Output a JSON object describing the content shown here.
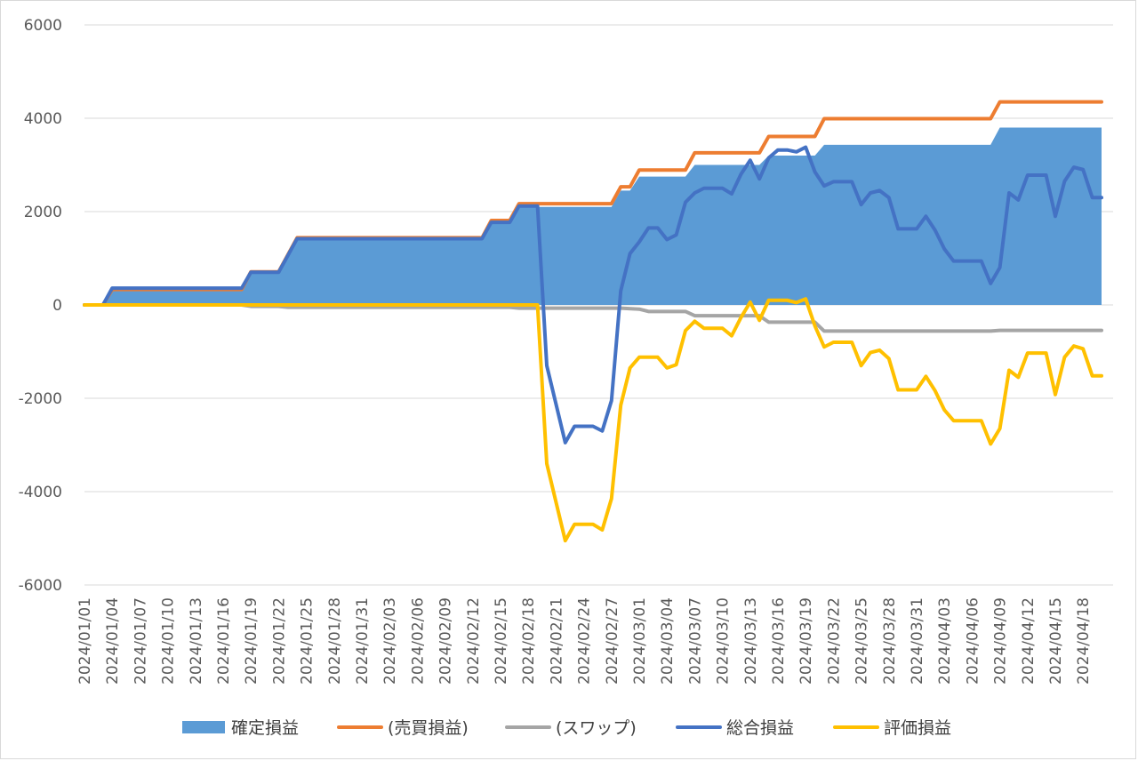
{
  "chart_data": {
    "type": "line",
    "title": "",
    "xlabel": "",
    "ylabel": "",
    "ylim": [
      -6000,
      6000
    ],
    "yticks": [
      6000,
      4000,
      2000,
      0,
      -2000,
      -4000,
      -6000
    ],
    "ytick_labels": [
      "6000",
      "4000",
      "2000",
      "0",
      "-2000",
      "-4000",
      "-6000"
    ],
    "grid": "horizontal",
    "legend_position": "bottom",
    "x_tick_labels": [
      "2024/01/01",
      "2024/01/04",
      "2024/01/07",
      "2024/01/10",
      "2024/01/13",
      "2024/01/16",
      "2024/01/19",
      "2024/01/22",
      "2024/01/25",
      "2024/01/28",
      "2024/01/31",
      "2024/02/03",
      "2024/02/06",
      "2024/02/09",
      "2024/02/12",
      "2024/02/15",
      "2024/02/18",
      "2024/02/21",
      "2024/02/24",
      "2024/02/27",
      "2024/03/01",
      "2024/03/04",
      "2024/03/07",
      "2024/03/10",
      "2024/03/13",
      "2024/03/16",
      "2024/03/19",
      "2024/03/22",
      "2024/03/25",
      "2024/03/28",
      "2024/03/31",
      "2024/04/03",
      "2024/04/06",
      "2024/04/09",
      "2024/04/12",
      "2024/04/15",
      "2024/04/18"
    ],
    "x_start": "2024/01/01",
    "x_end": "2024/04/20",
    "series": [
      {
        "name": "確定損益",
        "kind": "area",
        "color": "#5b9bd5",
        "points": [
          [
            "2024/01/01",
            0
          ],
          [
            "2024/01/03",
            0
          ],
          [
            "2024/01/04",
            300
          ],
          [
            "2024/01/18",
            300
          ],
          [
            "2024/01/19",
            680
          ],
          [
            "2024/01/22",
            680
          ],
          [
            "2024/01/24",
            1400
          ],
          [
            "2024/02/13",
            1400
          ],
          [
            "2024/02/14",
            1750
          ],
          [
            "2024/02/16",
            1750
          ],
          [
            "2024/02/17",
            2100
          ],
          [
            "2024/02/27",
            2100
          ],
          [
            "2024/02/28",
            2450
          ],
          [
            "2024/02/29",
            2450
          ],
          [
            "2024/03/01",
            2750
          ],
          [
            "2024/03/06",
            2750
          ],
          [
            "2024/03/07",
            3000
          ],
          [
            "2024/03/14",
            3000
          ],
          [
            "2024/03/15",
            3200
          ],
          [
            "2024/03/20",
            3200
          ],
          [
            "2024/03/21",
            3430
          ],
          [
            "2024/04/08",
            3430
          ],
          [
            "2024/04/09",
            3800
          ],
          [
            "2024/04/20",
            3800
          ]
        ]
      },
      {
        "name": "(売買損益)",
        "kind": "line",
        "color": "#ed7d31",
        "points": [
          [
            "2024/01/01",
            0
          ],
          [
            "2024/01/03",
            0
          ],
          [
            "2024/01/04",
            330
          ],
          [
            "2024/01/18",
            330
          ],
          [
            "2024/01/19",
            710
          ],
          [
            "2024/01/22",
            710
          ],
          [
            "2024/01/24",
            1440
          ],
          [
            "2024/02/13",
            1440
          ],
          [
            "2024/02/14",
            1810
          ],
          [
            "2024/02/16",
            1810
          ],
          [
            "2024/02/17",
            2170
          ],
          [
            "2024/02/27",
            2170
          ],
          [
            "2024/02/28",
            2530
          ],
          [
            "2024/02/29",
            2530
          ],
          [
            "2024/03/01",
            2890
          ],
          [
            "2024/03/06",
            2890
          ],
          [
            "2024/03/07",
            3260
          ],
          [
            "2024/03/14",
            3260
          ],
          [
            "2024/03/15",
            3610
          ],
          [
            "2024/03/20",
            3610
          ],
          [
            "2024/03/21",
            3990
          ],
          [
            "2024/04/08",
            3990
          ],
          [
            "2024/04/09",
            4350
          ],
          [
            "2024/04/20",
            4350
          ]
        ]
      },
      {
        "name": "(スワップ)",
        "kind": "line",
        "color": "#a5a5a5",
        "points": [
          [
            "2024/01/01",
            0
          ],
          [
            "2024/01/18",
            0
          ],
          [
            "2024/01/19",
            -30
          ],
          [
            "2024/01/22",
            -30
          ],
          [
            "2024/01/23",
            -50
          ],
          [
            "2024/02/16",
            -50
          ],
          [
            "2024/02/17",
            -70
          ],
          [
            "2024/02/28",
            -70
          ],
          [
            "2024/03/01",
            -90
          ],
          [
            "2024/03/02",
            -140
          ],
          [
            "2024/03/06",
            -140
          ],
          [
            "2024/03/07",
            -230
          ],
          [
            "2024/03/14",
            -230
          ],
          [
            "2024/03/15",
            -370
          ],
          [
            "2024/03/20",
            -370
          ],
          [
            "2024/03/21",
            -560
          ],
          [
            "2024/04/08",
            -560
          ],
          [
            "2024/04/09",
            -545
          ],
          [
            "2024/04/20",
            -545
          ]
        ]
      },
      {
        "name": "総合損益",
        "kind": "line",
        "color": "#4472c4",
        "points": [
          [
            "2024/01/01",
            0
          ],
          [
            "2024/01/03",
            0
          ],
          [
            "2024/01/04",
            360
          ],
          [
            "2024/01/18",
            360
          ],
          [
            "2024/01/19",
            700
          ],
          [
            "2024/01/22",
            700
          ],
          [
            "2024/01/24",
            1420
          ],
          [
            "2024/02/13",
            1420
          ],
          [
            "2024/02/14",
            1770
          ],
          [
            "2024/02/16",
            1770
          ],
          [
            "2024/02/17",
            2120
          ],
          [
            "2024/02/19",
            2120
          ],
          [
            "2024/02/20",
            -1300
          ],
          [
            "2024/02/22",
            -2950
          ],
          [
            "2024/02/23",
            -2600
          ],
          [
            "2024/02/25",
            -2600
          ],
          [
            "2024/02/26",
            -2700
          ],
          [
            "2024/02/27",
            -2050
          ],
          [
            "2024/02/28",
            300
          ],
          [
            "2024/02/29",
            1100
          ],
          [
            "2024/03/01",
            1350
          ],
          [
            "2024/03/02",
            1650
          ],
          [
            "2024/03/03",
            1650
          ],
          [
            "2024/03/04",
            1400
          ],
          [
            "2024/03/05",
            1500
          ],
          [
            "2024/03/06",
            2200
          ],
          [
            "2024/03/07",
            2400
          ],
          [
            "2024/03/08",
            2500
          ],
          [
            "2024/03/10",
            2500
          ],
          [
            "2024/03/11",
            2380
          ],
          [
            "2024/03/12",
            2800
          ],
          [
            "2024/03/13",
            3100
          ],
          [
            "2024/03/14",
            2700
          ],
          [
            "2024/03/15",
            3150
          ],
          [
            "2024/03/16",
            3320
          ],
          [
            "2024/03/17",
            3320
          ],
          [
            "2024/03/18",
            3280
          ],
          [
            "2024/03/19",
            3380
          ],
          [
            "2024/03/20",
            2850
          ],
          [
            "2024/03/21",
            2550
          ],
          [
            "2024/03/22",
            2640
          ],
          [
            "2024/03/24",
            2640
          ],
          [
            "2024/03/25",
            2150
          ],
          [
            "2024/03/26",
            2400
          ],
          [
            "2024/03/27",
            2450
          ],
          [
            "2024/03/28",
            2300
          ],
          [
            "2024/03/29",
            1630
          ],
          [
            "2024/03/31",
            1630
          ],
          [
            "2024/04/01",
            1900
          ],
          [
            "2024/04/02",
            1600
          ],
          [
            "2024/04/03",
            1200
          ],
          [
            "2024/04/04",
            940
          ],
          [
            "2024/04/07",
            940
          ],
          [
            "2024/04/08",
            460
          ],
          [
            "2024/04/09",
            800
          ],
          [
            "2024/04/10",
            2400
          ],
          [
            "2024/04/11",
            2250
          ],
          [
            "2024/04/12",
            2780
          ],
          [
            "2024/04/14",
            2780
          ],
          [
            "2024/04/15",
            1900
          ],
          [
            "2024/04/16",
            2650
          ],
          [
            "2024/04/17",
            2950
          ],
          [
            "2024/04/18",
            2900
          ],
          [
            "2024/04/19",
            2300
          ],
          [
            "2024/04/20",
            2300
          ]
        ]
      },
      {
        "name": "評価損益",
        "kind": "line",
        "color": "#ffc000",
        "points": [
          [
            "2024/01/01",
            0
          ],
          [
            "2024/02/19",
            0
          ],
          [
            "2024/02/20",
            -3400
          ],
          [
            "2024/02/22",
            -5050
          ],
          [
            "2024/02/23",
            -4700
          ],
          [
            "2024/02/25",
            -4700
          ],
          [
            "2024/02/26",
            -4820
          ],
          [
            "2024/02/27",
            -4150
          ],
          [
            "2024/02/28",
            -2150
          ],
          [
            "2024/02/29",
            -1350
          ],
          [
            "2024/03/01",
            -1120
          ],
          [
            "2024/03/03",
            -1120
          ],
          [
            "2024/03/04",
            -1350
          ],
          [
            "2024/03/05",
            -1280
          ],
          [
            "2024/03/06",
            -550
          ],
          [
            "2024/03/07",
            -350
          ],
          [
            "2024/03/08",
            -500
          ],
          [
            "2024/03/10",
            -500
          ],
          [
            "2024/03/11",
            -660
          ],
          [
            "2024/03/12",
            -270
          ],
          [
            "2024/03/13",
            60
          ],
          [
            "2024/03/14",
            -330
          ],
          [
            "2024/03/15",
            100
          ],
          [
            "2024/03/17",
            100
          ],
          [
            "2024/03/18",
            50
          ],
          [
            "2024/03/19",
            130
          ],
          [
            "2024/03/20",
            -450
          ],
          [
            "2024/03/21",
            -900
          ],
          [
            "2024/03/22",
            -800
          ],
          [
            "2024/03/24",
            -800
          ],
          [
            "2024/03/25",
            -1300
          ],
          [
            "2024/03/26",
            -1020
          ],
          [
            "2024/03/27",
            -970
          ],
          [
            "2024/03/28",
            -1150
          ],
          [
            "2024/03/29",
            -1820
          ],
          [
            "2024/03/31",
            -1820
          ],
          [
            "2024/04/01",
            -1530
          ],
          [
            "2024/04/02",
            -1840
          ],
          [
            "2024/04/03",
            -2250
          ],
          [
            "2024/04/04",
            -2480
          ],
          [
            "2024/04/07",
            -2480
          ],
          [
            "2024/04/08",
            -2980
          ],
          [
            "2024/04/09",
            -2650
          ],
          [
            "2024/04/10",
            -1400
          ],
          [
            "2024/04/11",
            -1550
          ],
          [
            "2024/04/12",
            -1030
          ],
          [
            "2024/04/14",
            -1030
          ],
          [
            "2024/04/15",
            -1920
          ],
          [
            "2024/04/16",
            -1120
          ],
          [
            "2024/04/17",
            -880
          ],
          [
            "2024/04/18",
            -940
          ],
          [
            "2024/04/19",
            -1520
          ],
          [
            "2024/04/20",
            -1520
          ]
        ]
      }
    ]
  }
}
